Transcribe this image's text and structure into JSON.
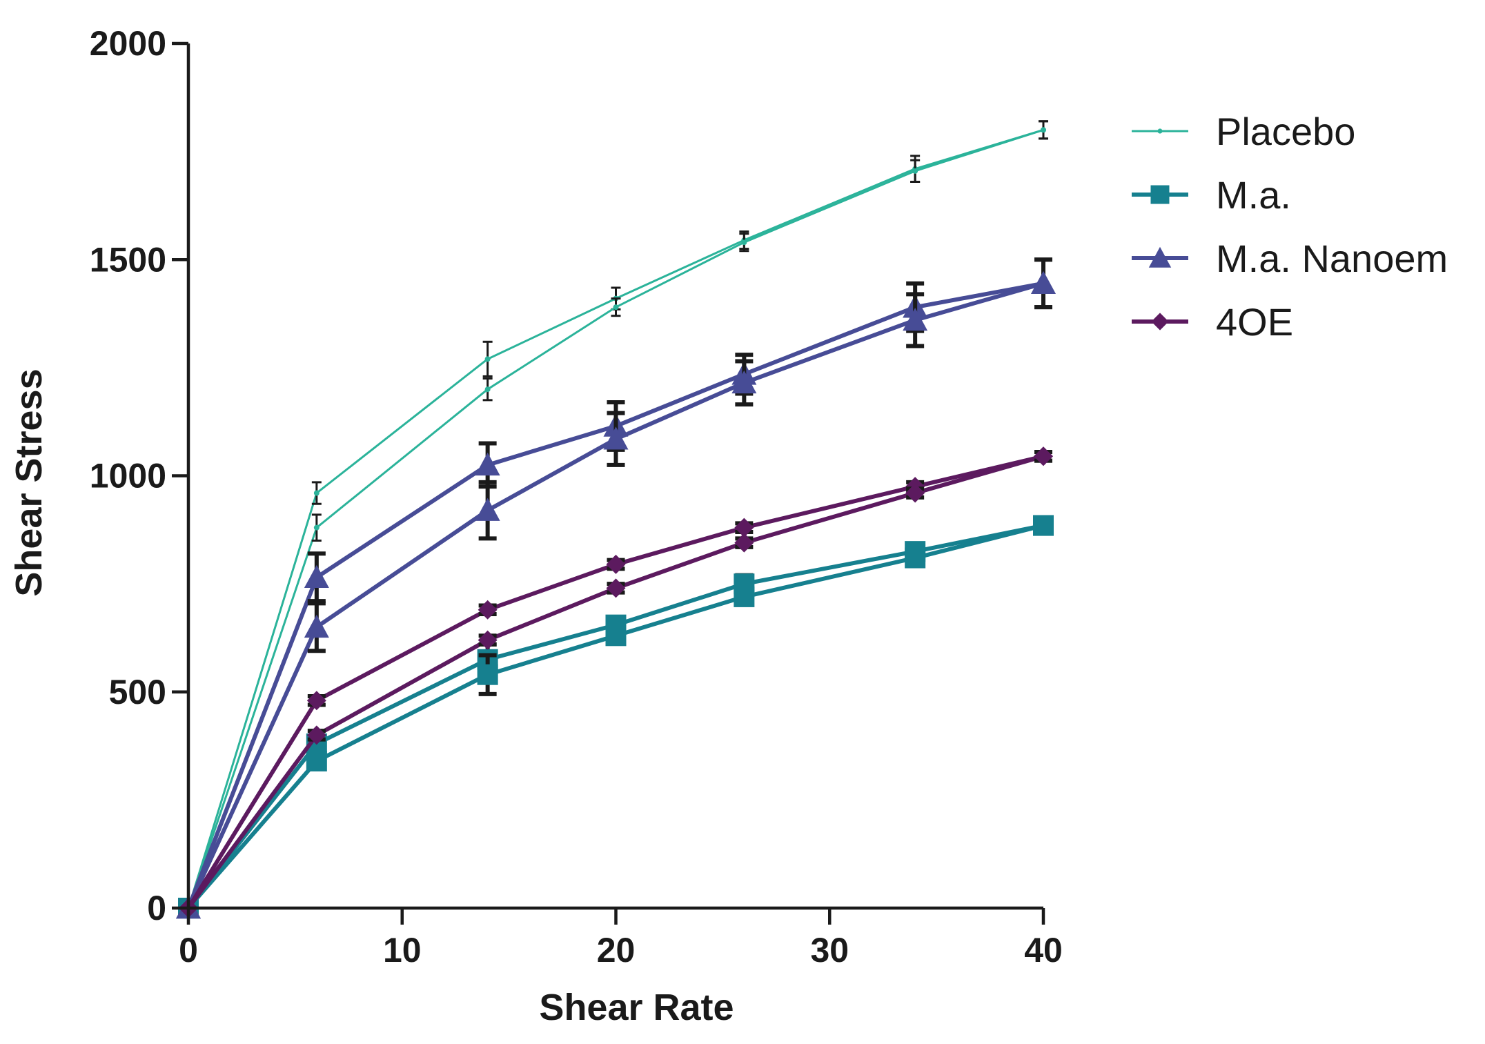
{
  "chart_data": {
    "type": "line",
    "title": "",
    "xlabel": "Shear Rate",
    "ylabel": "Shear Stress",
    "xlim": [
      0,
      40
    ],
    "ylim": [
      0,
      2000
    ],
    "xticks": [
      "0",
      "10",
      "20",
      "30",
      "40"
    ],
    "yticks": [
      "0",
      "500",
      "1000",
      "1500",
      "2000"
    ],
    "grid": false,
    "legend_position": "top-right",
    "series": [
      {
        "name": "Placebo",
        "color": "#2bb39a",
        "marker": "dot",
        "curves": [
          {
            "x": [
              0,
              6,
              14,
              20,
              26,
              34,
              40
            ],
            "y": [
              0,
              960,
              1270,
              1410,
              1545,
              1710,
              1800
            ],
            "err": [
              0,
              25,
              40,
              25,
              20,
              30,
              20
            ]
          },
          {
            "x": [
              0,
              6,
              14,
              20,
              26,
              34,
              40
            ],
            "y": [
              0,
              880,
              1200,
              1390,
              1540,
              1705,
              1800
            ],
            "err": [
              0,
              30,
              25,
              20,
              20,
              25,
              20
            ]
          }
        ]
      },
      {
        "name": "M.a.",
        "color": "#16808f",
        "marker": "square",
        "curves": [
          {
            "x": [
              0,
              6,
              14,
              20,
              26,
              34,
              40
            ],
            "y": [
              0,
              380,
              575,
              655,
              750,
              825,
              885
            ],
            "err": [
              0,
              15,
              35,
              15,
              20,
              15,
              10
            ]
          },
          {
            "x": [
              0,
              6,
              14,
              20,
              26,
              34,
              40
            ],
            "y": [
              0,
              340,
              540,
              630,
              720,
              810,
              885
            ],
            "err": [
              0,
              15,
              45,
              15,
              15,
              15,
              10
            ]
          }
        ]
      },
      {
        "name": "M.a. Nanoem",
        "color": "#474c96",
        "marker": "triangle",
        "curves": [
          {
            "x": [
              0,
              6,
              14,
              20,
              26,
              34,
              40
            ],
            "y": [
              0,
              765,
              1025,
              1115,
              1235,
              1390,
              1445
            ],
            "err": [
              0,
              55,
              50,
              55,
              45,
              55,
              55
            ]
          },
          {
            "x": [
              0,
              6,
              14,
              20,
              26,
              34,
              40
            ],
            "y": [
              0,
              650,
              920,
              1085,
              1215,
              1360,
              1445
            ],
            "err": [
              0,
              55,
              65,
              60,
              50,
              60,
              55
            ]
          }
        ]
      },
      {
        "name": "4OE",
        "color": "#5c1a5f",
        "marker": "diamond",
        "curves": [
          {
            "x": [
              0,
              6,
              14,
              20,
              26,
              34,
              40
            ],
            "y": [
              0,
              480,
              690,
              795,
              880,
              975,
              1045
            ],
            "err": [
              0,
              10,
              10,
              10,
              10,
              10,
              10
            ]
          },
          {
            "x": [
              0,
              6,
              14,
              20,
              26,
              34,
              40
            ],
            "y": [
              0,
              400,
              620,
              740,
              845,
              960,
              1045
            ],
            "err": [
              0,
              10,
              10,
              10,
              10,
              10,
              10
            ]
          }
        ]
      }
    ]
  }
}
